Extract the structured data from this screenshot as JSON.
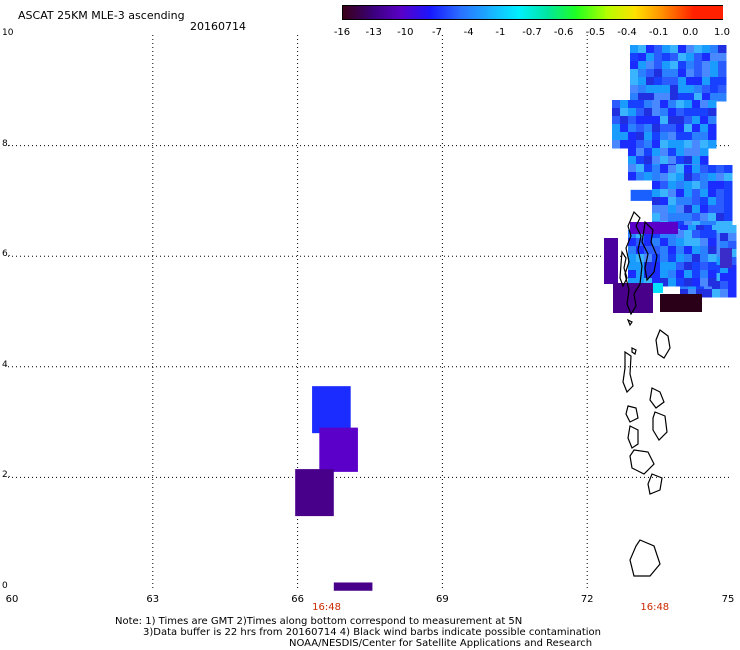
{
  "header": {
    "title": "ASCAT 25KM MLE-3 ascending",
    "date": "20160714"
  },
  "colorbar": {
    "labels": [
      "-16",
      "-13",
      "-10",
      "-7",
      "-4",
      "-1",
      "-0.7",
      "-0.6",
      "-0.5",
      "-0.4",
      "-0.1",
      "0.0",
      "1.0"
    ],
    "colors": [
      "#3a0018",
      "#3a007a",
      "#5a00c8",
      "#1818ff",
      "#2a70ff",
      "#1aaeff",
      "#00f0ff",
      "#00e6a0",
      "#20ff20",
      "#b0ff00",
      "#ffe000",
      "#ff8800",
      "#ff2000"
    ]
  },
  "map": {
    "lon_range": [
      60,
      75
    ],
    "lat_range": [
      0,
      10
    ],
    "x_ticks": [
      "60",
      "63",
      "66",
      "69",
      "72",
      "75"
    ],
    "y_ticks": [
      "0",
      "2.",
      "4",
      "6.",
      "8.",
      "10"
    ],
    "pass_times": [
      {
        "label": "16:48",
        "lon": 66.6
      },
      {
        "label": "16:48",
        "lon": 73.4
      }
    ],
    "swath_cells": [
      {
        "lon": [
          66.3,
          67.1
        ],
        "lat": [
          2.8,
          3.65
        ],
        "color": "#1a2cff"
      },
      {
        "lon": [
          66.45,
          67.25
        ],
        "lat": [
          2.1,
          2.9
        ],
        "color": "#5a00c8"
      },
      {
        "lon": [
          65.95,
          66.75
        ],
        "lat": [
          1.3,
          2.15
        ],
        "color": "#48008a"
      },
      {
        "lon": [
          66.75,
          67.55
        ],
        "lat": [
          -0.05,
          0.1
        ],
        "color": "#48008a"
      },
      {
        "lon": [
          72.9,
          73.6
        ],
        "lat": [
          7.0,
          7.2
        ],
        "color": "#1a60ff"
      }
    ]
  },
  "footer": {
    "note_line1": "Note: 1) Times are GMT 2)Times along bottom correspond to measurement at 5N",
    "note_line2": "3)Data buffer is 22 hrs from 20160714 4) Black wind barbs indicate possible contamination",
    "credit": "NOAA/NESDIS/Center for Satellite Applications and Research"
  }
}
